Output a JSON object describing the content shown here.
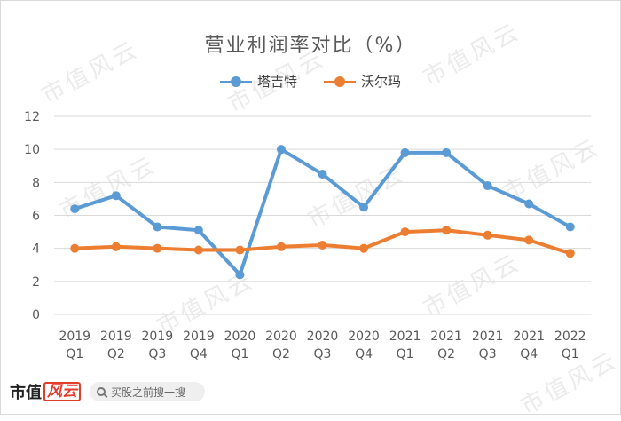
{
  "chart_data": {
    "type": "line",
    "title": "营业利润率对比（%）",
    "categories": [
      [
        "2019",
        "Q1"
      ],
      [
        "2019",
        "Q2"
      ],
      [
        "2019",
        "Q3"
      ],
      [
        "2019",
        "Q4"
      ],
      [
        "2020",
        "Q1"
      ],
      [
        "2020",
        "Q2"
      ],
      [
        "2020",
        "Q3"
      ],
      [
        "2020",
        "Q4"
      ],
      [
        "2021",
        "Q1"
      ],
      [
        "2021",
        "Q2"
      ],
      [
        "2021",
        "Q3"
      ],
      [
        "2021",
        "Q4"
      ],
      [
        "2022",
        "Q1"
      ]
    ],
    "series": [
      {
        "name": "塔吉特",
        "color": "#5b9bd5",
        "values": [
          6.4,
          7.2,
          5.3,
          5.1,
          2.4,
          10.0,
          8.5,
          6.5,
          9.8,
          9.8,
          7.8,
          6.7,
          5.3
        ]
      },
      {
        "name": "沃尔玛",
        "color": "#ed7d31",
        "values": [
          4.0,
          4.1,
          4.0,
          3.9,
          3.9,
          4.1,
          4.2,
          4.0,
          5.0,
          5.1,
          4.8,
          4.5,
          3.7
        ]
      }
    ],
    "ylim": [
      0,
      12
    ],
    "yticks": [
      0,
      2,
      4,
      6,
      8,
      10,
      12
    ],
    "grid": true,
    "legend": "top-center"
  },
  "footer": {
    "brand_text": "市值",
    "brand_mark": "风云",
    "search_placeholder": "买股之前搜一搜"
  },
  "watermark": "市值风云"
}
